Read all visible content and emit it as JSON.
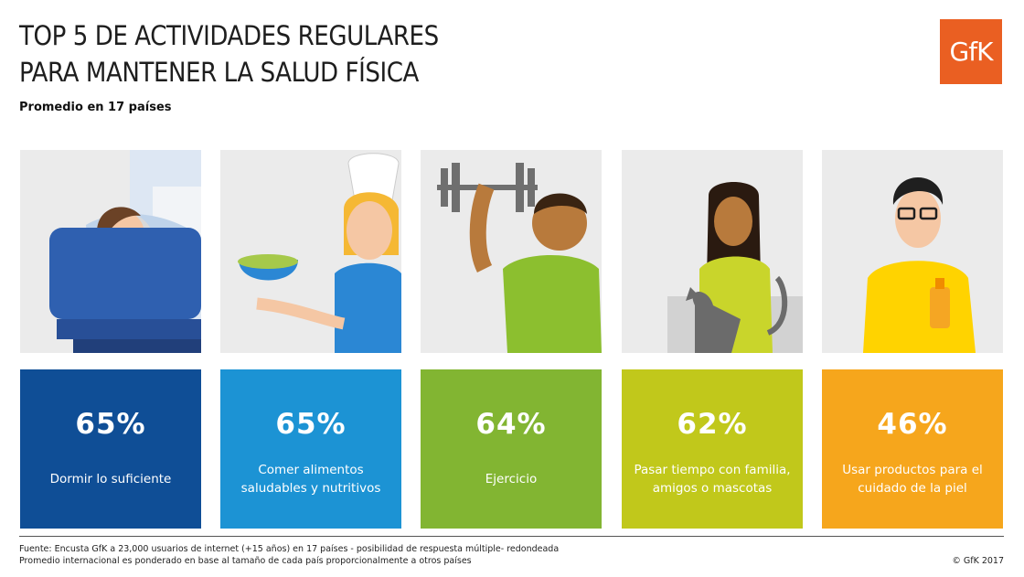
{
  "header": {
    "title_line1": "TOP 5 DE ACTIVIDADES REGULARES",
    "title_line2": "PARA MANTENER LA SALUD FÍSICA",
    "subtitle": "Promedio en 17 países",
    "logo": "GfK"
  },
  "colors": {
    "brand_orange": "#ea5f22",
    "card_dark_blue": "#0f4e96",
    "card_light_blue": "#1c93d4",
    "card_green": "#82b532",
    "card_olive": "#c1c81b",
    "card_orange": "#f6a61c"
  },
  "cards": [
    {
      "percent": "65%",
      "label": "Dormir lo suficiente",
      "icon": "sleeping-person-icon"
    },
    {
      "percent": "65%",
      "label": "Comer alimentos saludables y nutritivos",
      "icon": "chef-salad-icon"
    },
    {
      "percent": "64%",
      "label": "Ejercicio",
      "icon": "dumbbell-person-icon"
    },
    {
      "percent": "62%",
      "label": "Pasar tiempo con familia, amigos o mascotas",
      "icon": "woman-with-cat-icon"
    },
    {
      "percent": "46%",
      "label": "Usar productos para el cuidado de la piel",
      "icon": "man-with-lotion-icon"
    }
  ],
  "footer": {
    "source": "Fuente: Encusta GfK a 23,000 usuarios de internet (+15 años) en 17 países - posibilidad de respuesta múltiple- redondeada",
    "note": "Promedio internacional es ponderado en base al tamaño de cada país proporcionalmente a otros países",
    "copyright": "© GfK 2017"
  }
}
